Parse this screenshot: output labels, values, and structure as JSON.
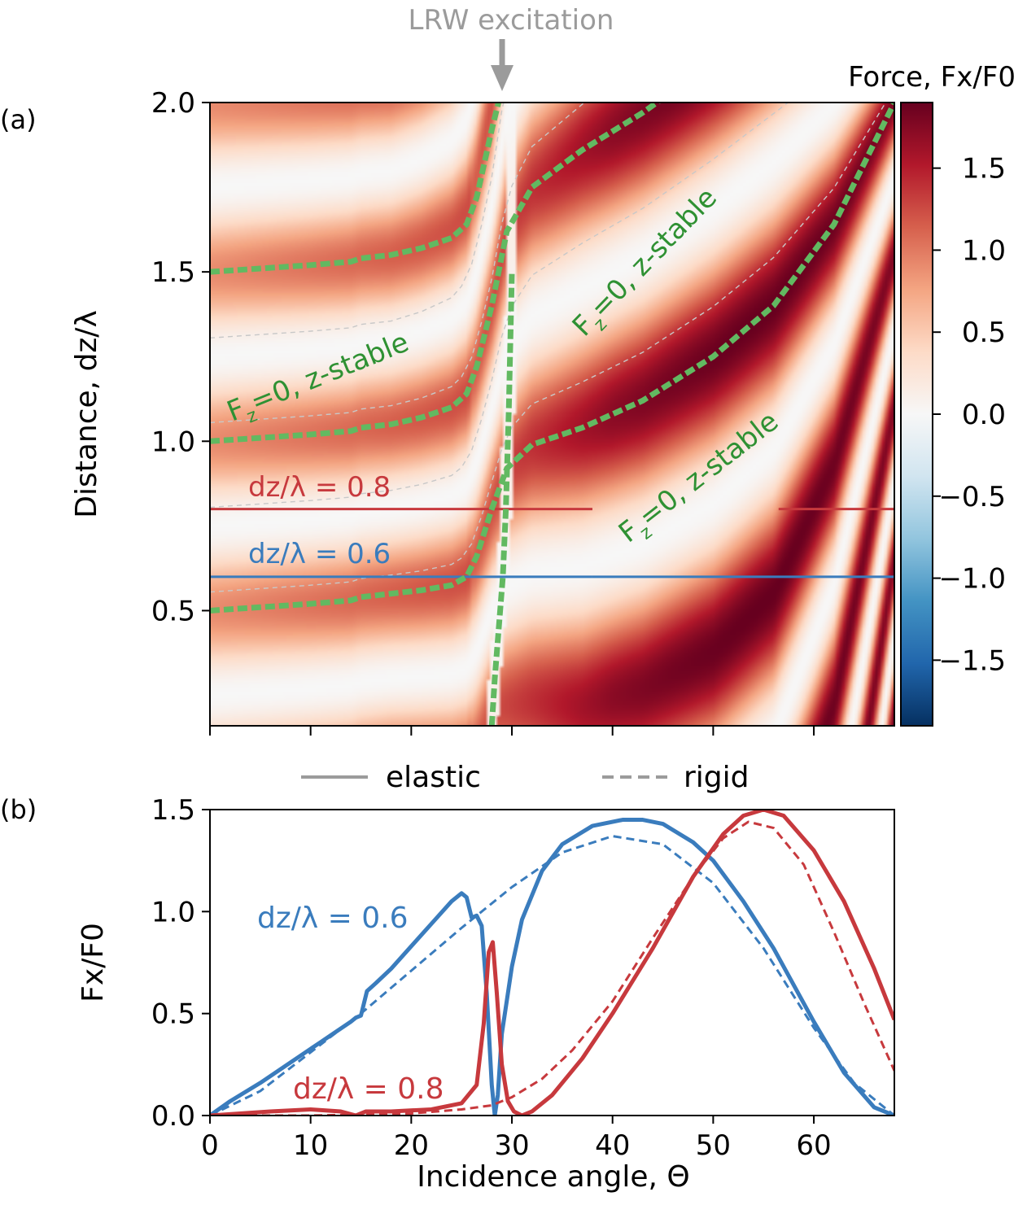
{
  "figure": {
    "annotation": "LRW excitation",
    "panel_labels": [
      "(a)",
      "(b)"
    ]
  },
  "colors": {
    "red": "#c7393d",
    "blue": "#3a7cbd",
    "green_line": "#62b961",
    "green_text": "#2f9133",
    "gray": "#9b9b9b",
    "grid_dashed": "#c8c8c8"
  },
  "chart_data": [
    {
      "type": "heatmap",
      "panel": "(a)",
      "ylabel": "Distance, dz/λ",
      "xlim": [
        0,
        68
      ],
      "ylim": [
        0.16,
        2.0
      ],
      "y_ticks": [
        0.5,
        1.0,
        1.5,
        2.0
      ],
      "y_tick_labels": [
        "0.5",
        "1.0",
        "1.5",
        "2.0"
      ],
      "x_ticks": [
        0,
        10,
        20,
        30,
        40,
        50,
        60
      ],
      "colorbar": {
        "label": "Force, Fx/F0",
        "cmap": "RdBu_r",
        "range": [
          -1.9,
          1.9
        ],
        "ticks": [
          1.5,
          1.0,
          0.5,
          0.0,
          -0.5,
          -1.0,
          -1.5
        ],
        "tick_labels": [
          "1.5",
          "1.0",
          "0.5",
          "0.0",
          "−0.5",
          "−1.0",
          "−1.5"
        ]
      },
      "horizontal_lines": [
        {
          "label": "dz/λ = 0.8",
          "y": 0.8,
          "color": "#c7393d"
        },
        {
          "label": "dz/λ = 0.6",
          "y": 0.6,
          "color": "#3a7cbd"
        }
      ],
      "contours": [
        {
          "label": "F<sub>z</sub>=0, z-stable",
          "name_prefix": "F",
          "name_sub": "z",
          "name_suffix": "=0, z-stable",
          "x": [
            0,
            5,
            10,
            14,
            15,
            18,
            21,
            24,
            25.5,
            26.5,
            28,
            29.5,
            32,
            37,
            43,
            50,
            56,
            62,
            68
          ],
          "y": [
            0.5,
            0.51,
            0.52,
            0.53,
            0.54,
            0.55,
            0.56,
            0.575,
            0.6,
            0.66,
            0.8,
            0.92,
            0.99,
            1.04,
            1.12,
            1.25,
            1.4,
            1.64,
            2.0
          ]
        },
        {
          "label": "F<sub>z</sub>=0, z-stable",
          "name_prefix": "F",
          "name_sub": "z",
          "name_suffix": "=0, z-stable",
          "x": [
            0,
            5,
            10,
            14,
            15,
            18,
            21,
            24,
            25.5,
            26.5,
            28,
            29.5,
            32,
            37,
            43,
            50,
            56,
            62,
            68
          ],
          "y": [
            1.0,
            1.01,
            1.02,
            1.03,
            1.04,
            1.05,
            1.07,
            1.1,
            1.14,
            1.22,
            1.4,
            1.62,
            1.75,
            1.86,
            1.97,
            2.12,
            2.25,
            2.35,
            2.45
          ]
        },
        {
          "label": "F<sub>z</sub>=0, z-stable",
          "name_prefix": "F",
          "name_sub": "z",
          "name_suffix": "=0, z-stable",
          "x": [
            0,
            5,
            10,
            14,
            15,
            18,
            21,
            24,
            25.5,
            26.5,
            28,
            29.5,
            32,
            37,
            43,
            50,
            56,
            62,
            68
          ],
          "y": [
            1.5,
            1.51,
            1.52,
            1.53,
            1.54,
            1.55,
            1.57,
            1.6,
            1.64,
            1.72,
            1.92,
            2.1,
            2.24,
            2.36,
            2.46,
            2.55,
            2.62,
            2.7,
            2.78
          ]
        },
        {
          "label": "",
          "name_prefix": "",
          "name_sub": "",
          "name_suffix": "",
          "x": [
            28,
            28.3,
            28.7,
            29.1,
            29.4,
            29.7,
            30.0
          ],
          "y": [
            0.16,
            0.3,
            0.45,
            0.6,
            0.8,
            1.1,
            1.5
          ]
        }
      ]
    },
    {
      "type": "line",
      "panel": "(b)",
      "xlabel": "Incidence angle, Θ",
      "ylabel": "Fx/F0",
      "xlim": [
        0,
        68
      ],
      "ylim": [
        0,
        1.5
      ],
      "x_ticks": [
        0,
        10,
        20,
        30,
        40,
        50,
        60
      ],
      "y_ticks": [
        0.0,
        0.5,
        1.0,
        1.5
      ],
      "x_tick_labels": [
        "0",
        "10",
        "20",
        "30",
        "40",
        "50",
        "60"
      ],
      "y_tick_labels": [
        "0.0",
        "0.5",
        "1.0",
        "1.5"
      ],
      "legend": {
        "placement": "top",
        "items": [
          {
            "label": "elastic",
            "style": "solid"
          },
          {
            "label": "rigid",
            "style": "dashed"
          }
        ]
      },
      "annotations": [
        {
          "text": "dz/λ = 0.6",
          "color": "#3a7cbd"
        },
        {
          "text": "dz/λ = 0.8",
          "color": "#c7393d"
        }
      ],
      "series": [
        {
          "name": "dz/λ = 0.6",
          "style": "solid",
          "color": "#3a7cbd",
          "x": [
            0,
            2,
            5,
            8,
            11,
            14,
            14.5,
            15,
            15.6,
            16.5,
            18,
            20,
            22,
            24,
            25,
            25.5,
            26,
            26.5,
            27,
            27.5,
            28,
            28.3,
            28.6,
            29,
            30,
            31,
            33,
            35,
            38,
            41,
            43,
            45,
            48,
            50,
            53,
            56,
            60,
            63,
            66,
            68
          ],
          "y": [
            0,
            0.07,
            0.16,
            0.26,
            0.36,
            0.46,
            0.48,
            0.49,
            0.61,
            0.65,
            0.72,
            0.83,
            0.94,
            1.05,
            1.09,
            1.07,
            0.97,
            0.98,
            0.93,
            0.6,
            0.15,
            0.0,
            0.1,
            0.4,
            0.73,
            0.96,
            1.2,
            1.33,
            1.42,
            1.45,
            1.45,
            1.43,
            1.34,
            1.25,
            1.05,
            0.82,
            0.46,
            0.21,
            0.04,
            0.0
          ]
        },
        {
          "name": "dz/λ = 0.6",
          "style": "dashed",
          "color": "#3a7cbd",
          "x": [
            0,
            5,
            10,
            15,
            20,
            25,
            30,
            35,
            40,
            45,
            50,
            55,
            60,
            64,
            68
          ],
          "y": [
            0,
            0.12,
            0.31,
            0.5,
            0.71,
            0.92,
            1.12,
            1.29,
            1.37,
            1.33,
            1.14,
            0.82,
            0.43,
            0.16,
            0.0
          ]
        },
        {
          "name": "dz/λ = 0.8",
          "style": "solid",
          "color": "#c7393d",
          "x": [
            0,
            3,
            6,
            10,
            13,
            14.5,
            15.5,
            18,
            22,
            25,
            26.5,
            27.2,
            27.7,
            28.1,
            28.5,
            29,
            29.6,
            30.2,
            31,
            32,
            34,
            37,
            40,
            44,
            48,
            51,
            53,
            55,
            57,
            60,
            63,
            66,
            68
          ],
          "y": [
            0,
            0.01,
            0.02,
            0.03,
            0.02,
            0.0,
            0.02,
            0.02,
            0.03,
            0.06,
            0.15,
            0.45,
            0.8,
            0.85,
            0.6,
            0.25,
            0.07,
            0.02,
            0.0,
            0.02,
            0.1,
            0.28,
            0.5,
            0.82,
            1.17,
            1.38,
            1.47,
            1.5,
            1.47,
            1.3,
            1.05,
            0.72,
            0.47
          ]
        },
        {
          "name": "dz/λ = 0.8",
          "style": "dashed",
          "color": "#c7393d",
          "x": [
            0,
            10,
            20,
            25,
            28,
            30,
            33,
            36,
            40,
            44,
            48,
            51,
            53.5,
            56,
            59,
            62,
            65,
            68
          ],
          "y": [
            0,
            0.0,
            0.01,
            0.03,
            0.05,
            0.09,
            0.18,
            0.32,
            0.56,
            0.87,
            1.17,
            1.36,
            1.44,
            1.41,
            1.23,
            0.9,
            0.55,
            0.22
          ]
        }
      ]
    }
  ]
}
